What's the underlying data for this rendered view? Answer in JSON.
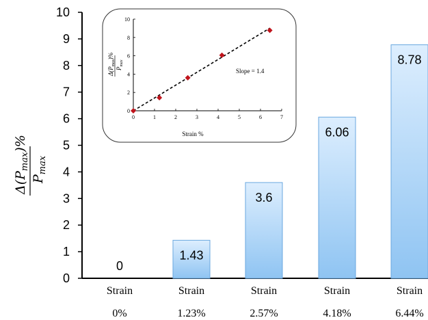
{
  "chart_data": [
    {
      "type": "bar",
      "categories": [
        {
          "line1": "Strain",
          "line2": "0%"
        },
        {
          "line1": "Strain",
          "line2": "1.23%"
        },
        {
          "line1": "Strain",
          "line2": "2.57%"
        },
        {
          "line1": "Strain",
          "line2": "4.18%"
        },
        {
          "line1": "Strain",
          "line2": "6.44%"
        }
      ],
      "values": [
        0,
        1.43,
        3.6,
        6.06,
        8.78
      ],
      "data_labels": [
        "0",
        "1.43",
        "3.6",
        "6.06",
        "8.78"
      ],
      "ylim": [
        0,
        10
      ],
      "yticks": [
        0,
        1,
        2,
        3,
        4,
        5,
        6,
        7,
        8,
        9,
        10
      ],
      "ylabel": {
        "numerator": "Δ(P",
        "sub": "max",
        "close": ")%",
        "denominator": "P",
        "denominator_sub": "max"
      },
      "bar_gradient": {
        "top": "#ddeefe",
        "bottom": "#8fc4f2"
      },
      "bar_edge": "#6aa7df",
      "grid": false
    },
    {
      "type": "scatter",
      "x": [
        0,
        1.23,
        2.57,
        4.18,
        6.44
      ],
      "y": [
        0,
        1.43,
        3.6,
        6.06,
        8.78
      ],
      "xlabel": "Strain %",
      "ylabel": {
        "numerator": "Δ(P",
        "sub": "max",
        "close": ")%",
        "denominator": "P",
        "denominator_sub": "max"
      },
      "xlim": [
        0,
        7
      ],
      "ylim": [
        0,
        10
      ],
      "xticks": [
        0,
        1,
        2,
        3,
        4,
        5,
        6,
        7
      ],
      "yticks": [
        0,
        2,
        4,
        6,
        8,
        10
      ],
      "annotation": "Slope = 1.4",
      "slope": 1.4,
      "marker_color": "#c0141c",
      "fit_line": "dashed"
    }
  ]
}
